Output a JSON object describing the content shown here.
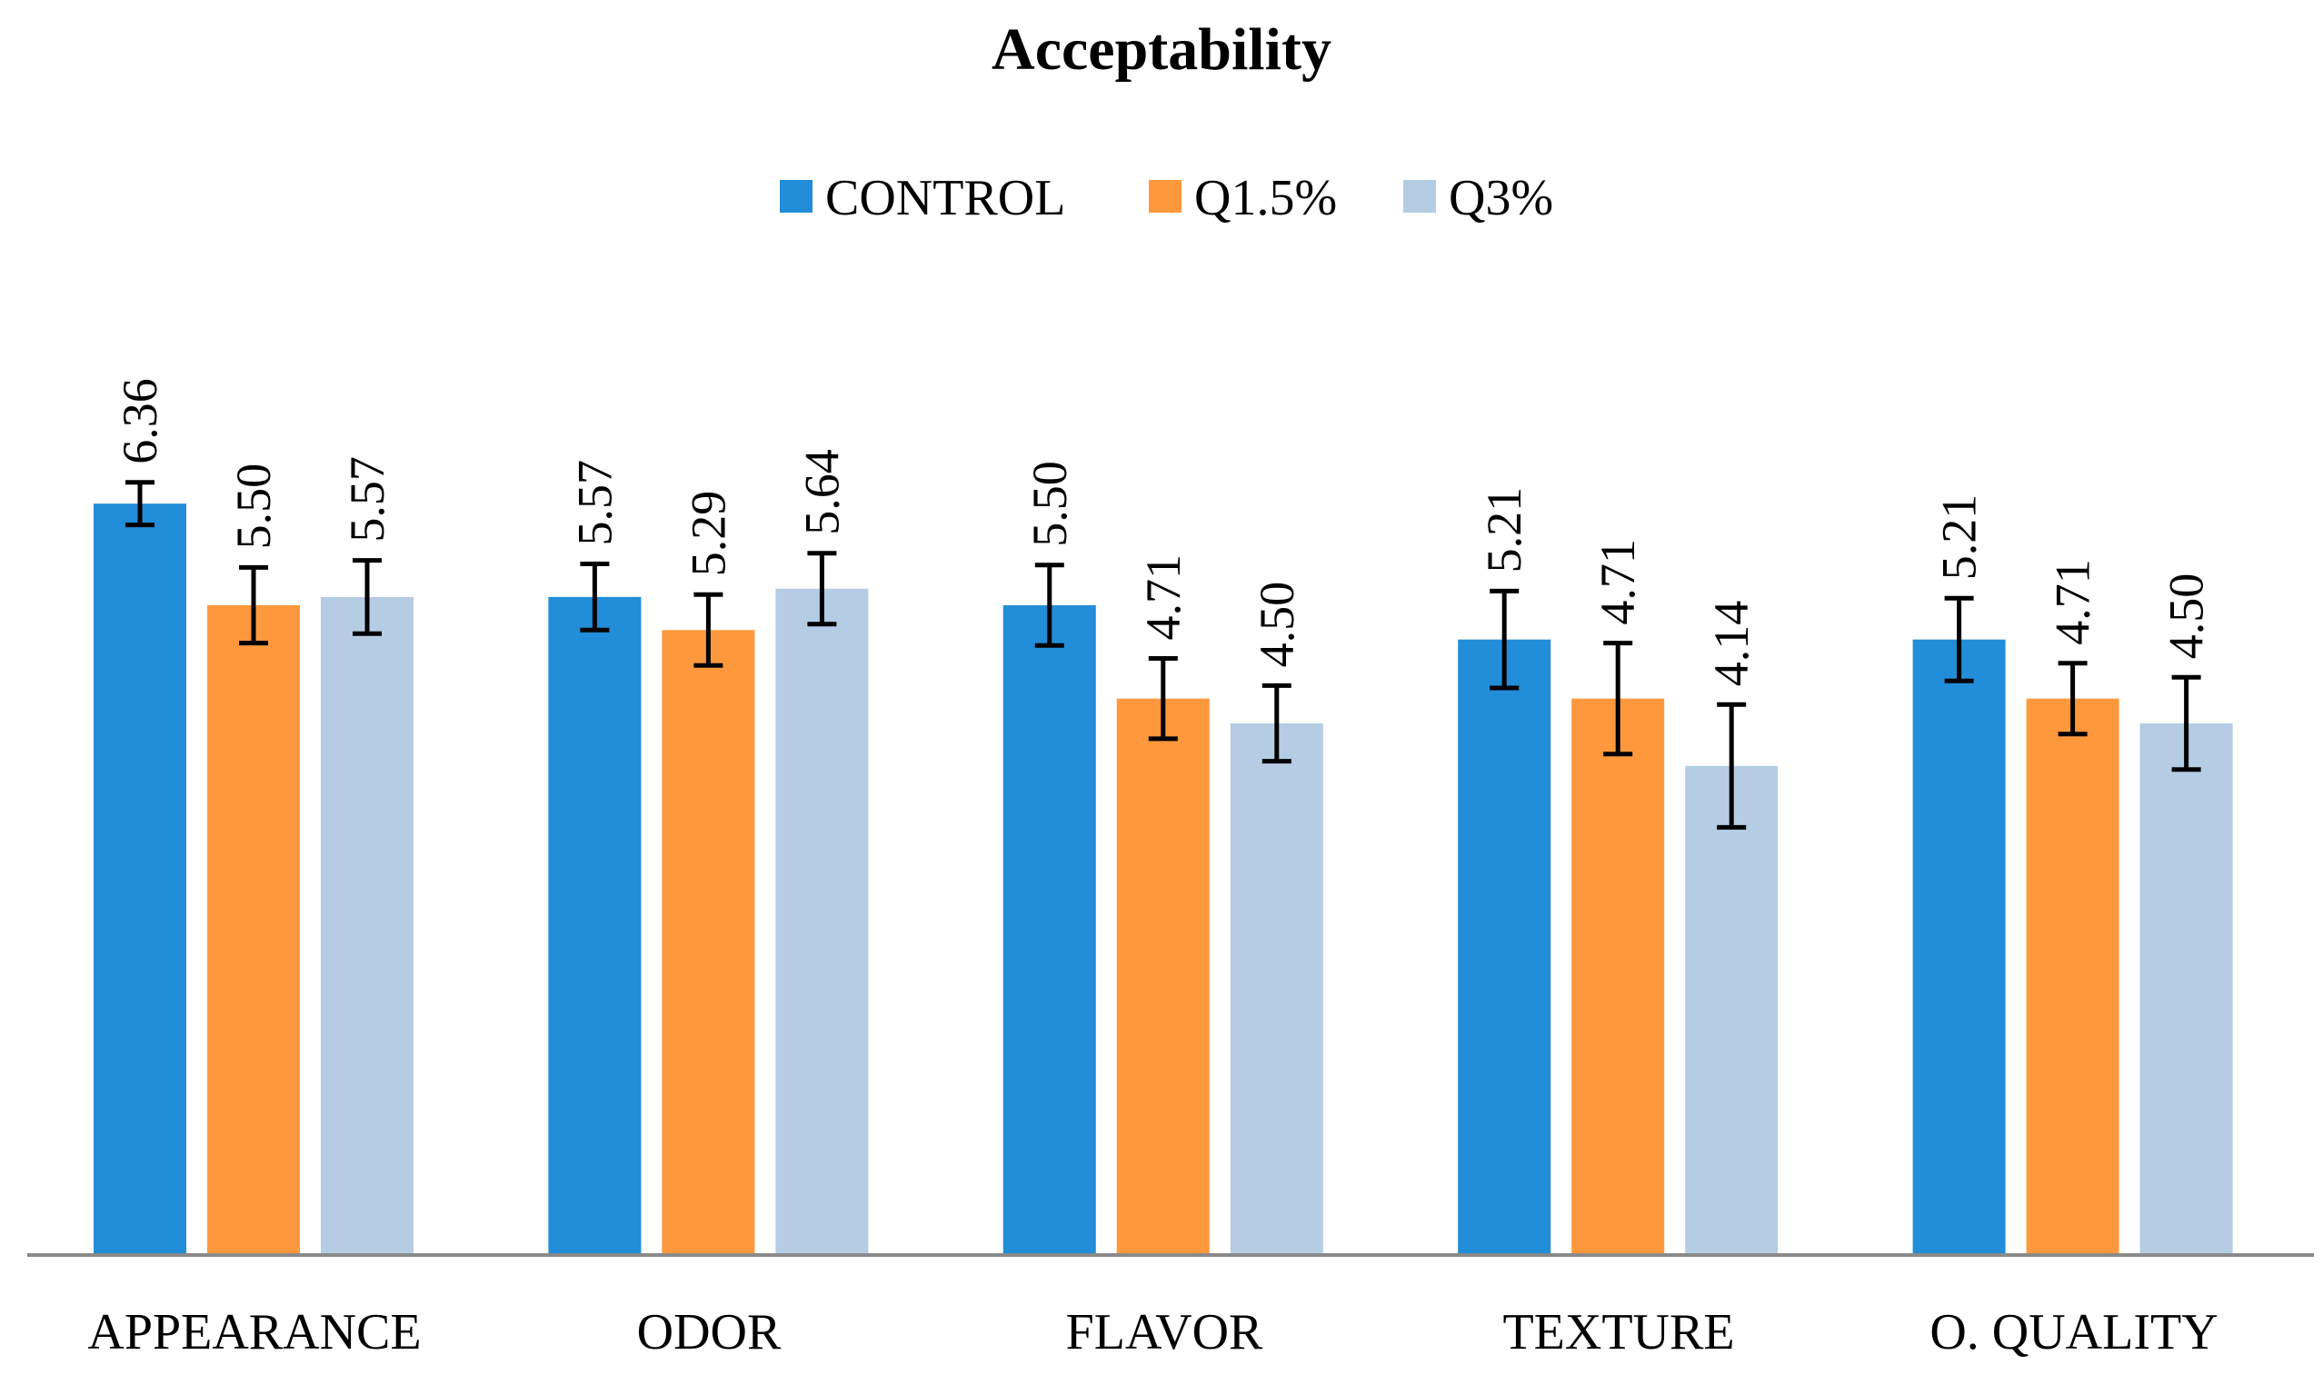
{
  "chart_data": {
    "type": "bar",
    "title": "Acceptability",
    "xlabel": "",
    "ylabel": "",
    "ylim": [
      0,
      7.9
    ],
    "grid": false,
    "legend_position": "top-center",
    "categories": [
      "APPEARANCE",
      "ODOR",
      "FLAVOR",
      "TEXTURE",
      "O. QUALITY"
    ],
    "series": [
      {
        "name": "CONTROL",
        "color": "#228dd8",
        "values": [
          6.36,
          5.57,
          5.5,
          5.21,
          5.21
        ],
        "labels": [
          "6.36",
          "5.57",
          "5.50",
          "5.21",
          "5.21"
        ],
        "errors": [
          0.18,
          0.28,
          0.34,
          0.41,
          0.35
        ]
      },
      {
        "name": "Q1.5%",
        "color": "#fe983c",
        "values": [
          5.5,
          5.29,
          4.71,
          4.71,
          4.71
        ],
        "labels": [
          "5.50",
          "5.29",
          "4.71",
          "4.71",
          "4.71"
        ],
        "errors": [
          0.32,
          0.3,
          0.34,
          0.47,
          0.3
        ]
      },
      {
        "name": "Q3%",
        "color": "#b4cde5",
        "values": [
          5.57,
          5.64,
          4.5,
          4.14,
          4.5
        ],
        "labels": [
          "5.57",
          "5.64",
          "4.50",
          "4.14",
          "4.50"
        ],
        "errors": [
          0.31,
          0.3,
          0.32,
          0.52,
          0.39
        ]
      }
    ],
    "axis_color": "#8a8a8a",
    "error_bar_color": "#000000"
  }
}
